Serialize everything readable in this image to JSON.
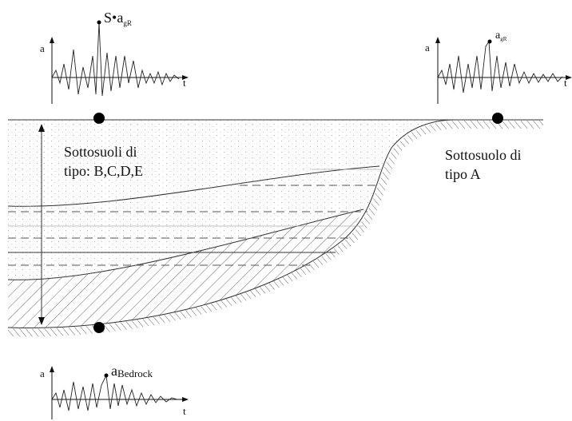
{
  "signals": [
    {
      "y_label": "a",
      "x_label": "t",
      "peak_label": "S•a",
      "peak_subscript": "gR"
    },
    {
      "y_label": "a",
      "x_label": "t",
      "peak_label": "a",
      "peak_subscript": "gR"
    },
    {
      "y_label": "a",
      "x_label": "t",
      "peak_label": "a",
      "peak_subscript": "Bedrock"
    }
  ],
  "labels": {
    "soil_bcde": [
      "Sottosuoli di",
      "tipo: B,C,D,E"
    ],
    "soil_a": [
      "Sottosuolo di",
      "tipo A"
    ]
  }
}
